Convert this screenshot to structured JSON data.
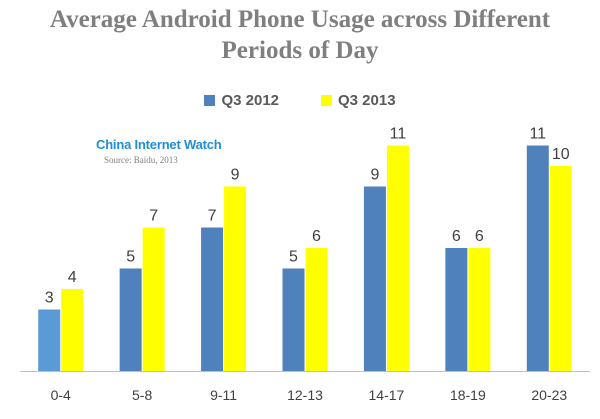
{
  "chart_data": {
    "type": "bar",
    "title_lines": [
      "Average Android Phone Usage across Different",
      "Periods of Day"
    ],
    "categories": [
      "0-4",
      "5-8",
      "9-11",
      "12-13",
      "14-17",
      "18-19",
      "20-23"
    ],
    "series": [
      {
        "name": "Q3 2012",
        "values": [
          3,
          5,
          7,
          5,
          9,
          6,
          11
        ],
        "color": "#4f81bd"
      },
      {
        "name": "Q3 2013",
        "values": [
          4,
          7,
          9,
          6,
          11,
          6,
          10
        ],
        "color": "#ffff00"
      }
    ],
    "first_bar_color": "#5b9bd5",
    "ylim": [
      0,
      12
    ],
    "grid": false,
    "legend_position": "top-center"
  },
  "watermark": {
    "name": "China Internet Watch",
    "source": "Source: Baidu, 2013"
  }
}
